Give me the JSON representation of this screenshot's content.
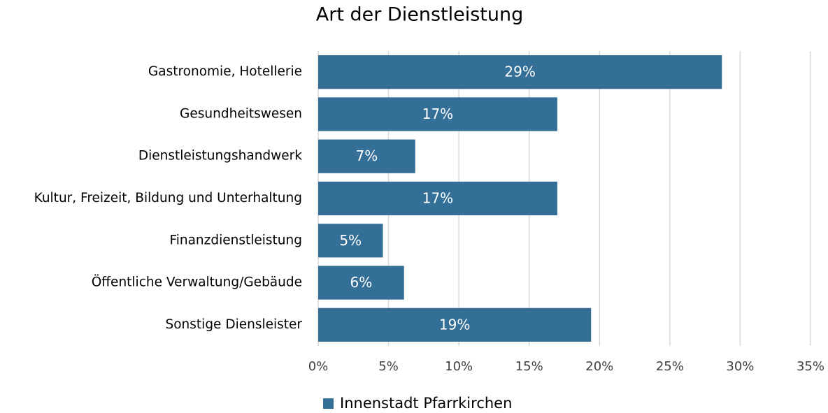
{
  "chart_data": {
    "type": "hbar",
    "title": "Art der Dienstleistung",
    "categories": [
      "Gastronomie, Hotellerie",
      "Gesundheitswesen",
      "Dienstleistungshandwerk",
      "Kultur, Freizeit, Bildung und Unterhaltung",
      "Finanzdienstleistung",
      "Öffentliche Verwaltung/Gebäude",
      "Sonstige Diensleister"
    ],
    "series": [
      {
        "name": "Innenstadt Pfarrkirchen",
        "color": "#336f97",
        "values": [
          28.7,
          17.0,
          6.9,
          17.0,
          4.6,
          6.1,
          19.4
        ],
        "value_labels": [
          "29%",
          "17%",
          "7%",
          "17%",
          "5%",
          "6%",
          "19%"
        ]
      }
    ],
    "xlim": [
      0,
      35
    ],
    "xticks": [
      {
        "value": 0,
        "label": "0%"
      },
      {
        "value": 5,
        "label": "5%"
      },
      {
        "value": 10,
        "label": "10%"
      },
      {
        "value": 15,
        "label": "15%"
      },
      {
        "value": 20,
        "label": "20%"
      },
      {
        "value": 25,
        "label": "25%"
      },
      {
        "value": 30,
        "label": "30%"
      },
      {
        "value": 35,
        "label": "35%"
      }
    ],
    "grid": true,
    "legend": "bottom"
  }
}
